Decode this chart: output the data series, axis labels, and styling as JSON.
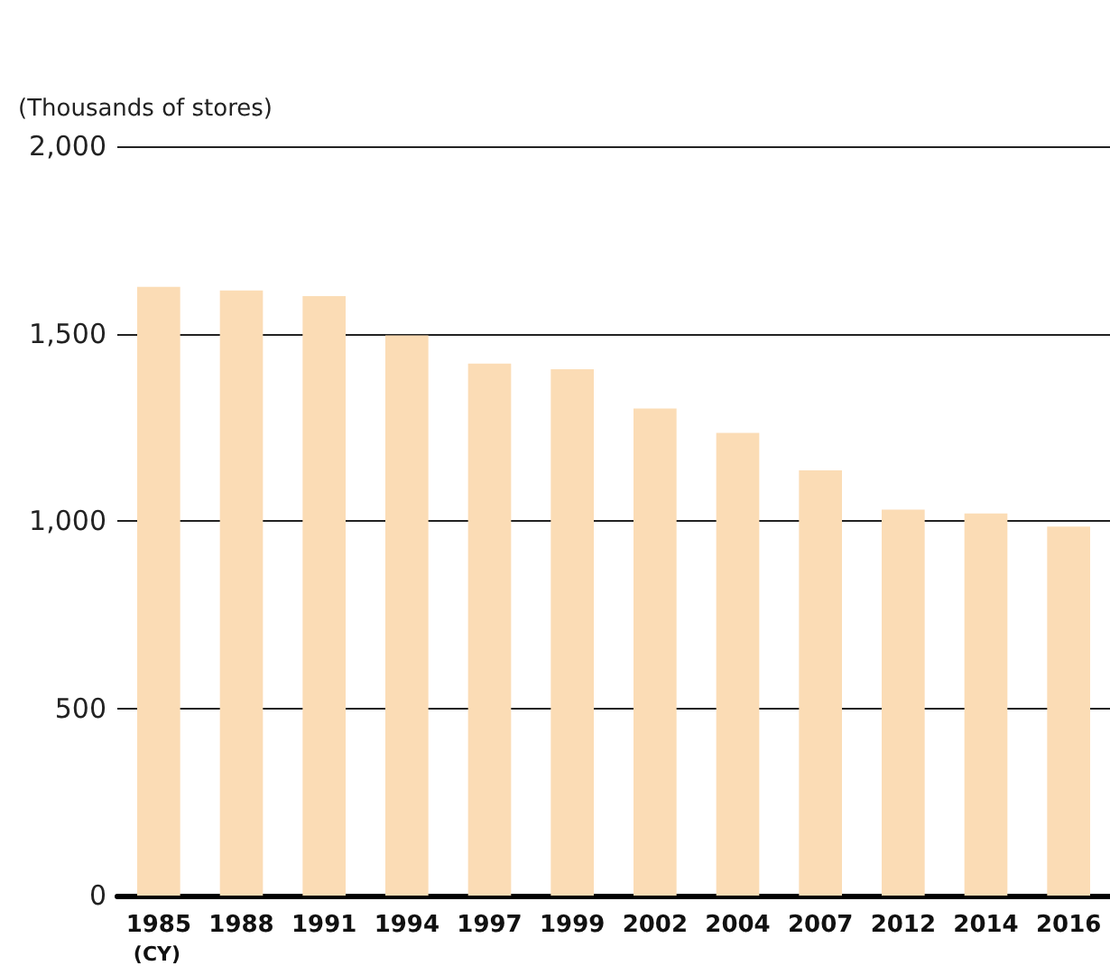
{
  "chart_data": {
    "type": "bar",
    "ylabel": "(Thousands of stores)",
    "xlabel": "(CY)",
    "categories": [
      "1985",
      "1988",
      "1991",
      "1994",
      "1997",
      "1999",
      "2002",
      "2004",
      "2007",
      "2012",
      "2014",
      "2016"
    ],
    "values": [
      1625,
      1615,
      1600,
      1495,
      1420,
      1405,
      1300,
      1235,
      1135,
      1030,
      1020,
      985
    ],
    "color": "#fbdcb5",
    "ylim": [
      0,
      2000
    ],
    "yticks": [
      0,
      500,
      {
        "value": 1000,
        "label": "1,000"
      },
      {
        "value": 1500,
        "label": "1,500"
      },
      {
        "value": 2000,
        "label": "2,000"
      }
    ],
    "grid": "y"
  }
}
